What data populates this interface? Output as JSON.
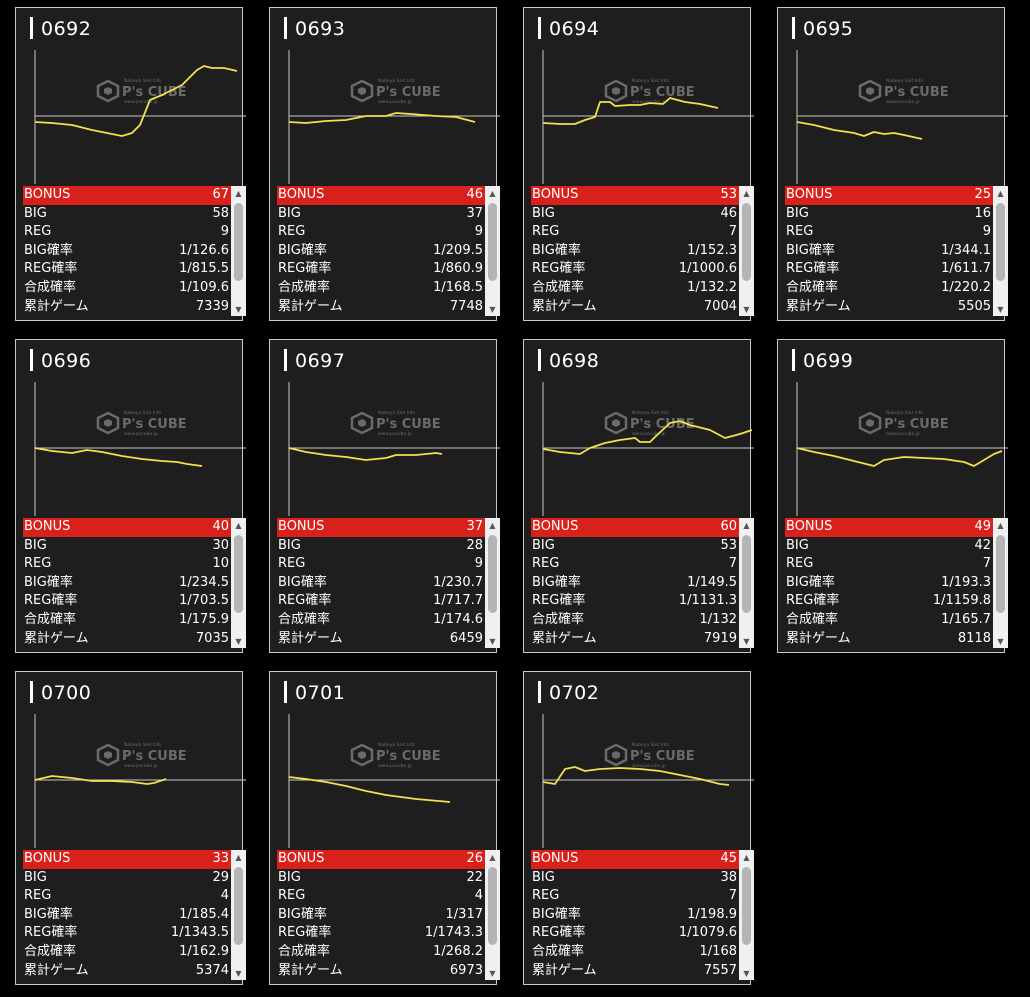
{
  "watermark": {
    "brand": "P's CUBE",
    "line1": "Nabeya Slot Info",
    "line2": "www.pscube.jp"
  },
  "colors": {
    "bonus_bar": "#d9211c",
    "graph_line": "#f4e04a",
    "card_bg": "#1e1e1e"
  },
  "labels": {
    "bonus": "BONUS",
    "big": "BIG",
    "reg": "REG",
    "big_rate": "BIG確率",
    "reg_rate": "REG確率",
    "combined_rate": "合成確率",
    "total_games": "累計ゲーム"
  },
  "machines": [
    {
      "id": "0692",
      "bonus": "67",
      "big": "58",
      "reg": "9",
      "big_rate": "1/126.6",
      "reg_rate": "1/815.5",
      "combined_rate": "1/109.6",
      "total_games": "7339"
    },
    {
      "id": "0693",
      "bonus": "46",
      "big": "37",
      "reg": "9",
      "big_rate": "1/209.5",
      "reg_rate": "1/860.9",
      "combined_rate": "1/168.5",
      "total_games": "7748"
    },
    {
      "id": "0694",
      "bonus": "53",
      "big": "46",
      "reg": "7",
      "big_rate": "1/152.3",
      "reg_rate": "1/1000.6",
      "combined_rate": "1/132.2",
      "total_games": "7004"
    },
    {
      "id": "0695",
      "bonus": "25",
      "big": "16",
      "reg": "9",
      "big_rate": "1/344.1",
      "reg_rate": "1/611.7",
      "combined_rate": "1/220.2",
      "total_games": "5505"
    },
    {
      "id": "0696",
      "bonus": "40",
      "big": "30",
      "reg": "10",
      "big_rate": "1/234.5",
      "reg_rate": "1/703.5",
      "combined_rate": "1/175.9",
      "total_games": "7035"
    },
    {
      "id": "0697",
      "bonus": "37",
      "big": "28",
      "reg": "9",
      "big_rate": "1/230.7",
      "reg_rate": "1/717.7",
      "combined_rate": "1/174.6",
      "total_games": "6459"
    },
    {
      "id": "0698",
      "bonus": "60",
      "big": "53",
      "reg": "7",
      "big_rate": "1/149.5",
      "reg_rate": "1/1131.3",
      "combined_rate": "1/132",
      "total_games": "7919"
    },
    {
      "id": "0699",
      "bonus": "49",
      "big": "42",
      "reg": "7",
      "big_rate": "1/193.3",
      "reg_rate": "1/1159.8",
      "combined_rate": "1/165.7",
      "total_games": "8118"
    },
    {
      "id": "0700",
      "bonus": "33",
      "big": "29",
      "reg": "4",
      "big_rate": "1/185.4",
      "reg_rate": "1/1343.5",
      "combined_rate": "1/162.9",
      "total_games": "5374"
    },
    {
      "id": "0701",
      "bonus": "26",
      "big": "22",
      "reg": "4",
      "big_rate": "1/317",
      "reg_rate": "1/1743.3",
      "combined_rate": "1/268.2",
      "total_games": "6973"
    },
    {
      "id": "0702",
      "bonus": "45",
      "big": "38",
      "reg": "7",
      "big_rate": "1/198.9",
      "reg_rate": "1/1079.6",
      "combined_rate": "1/168",
      "total_games": "7557"
    }
  ]
}
